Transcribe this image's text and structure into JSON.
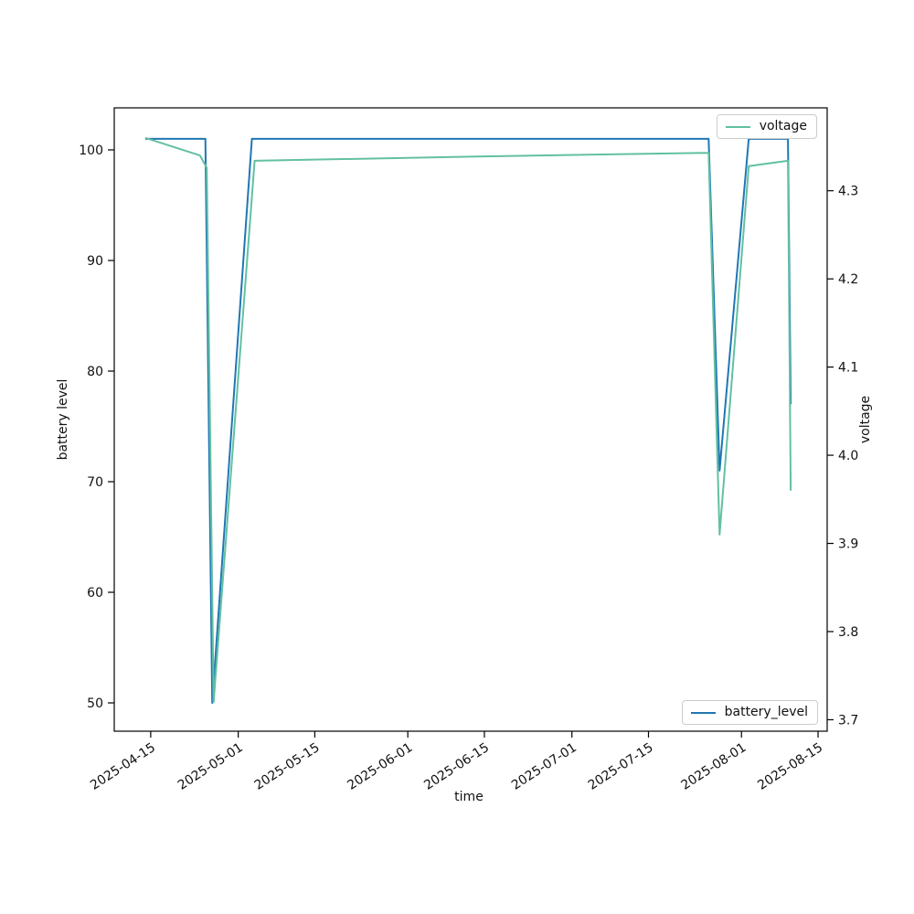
{
  "chart_data": {
    "type": "line",
    "title": "",
    "xlabel": "time",
    "grid": false,
    "x_range": [
      "2025-04-08T08:00",
      "2025-08-16T16:00"
    ],
    "x_ticks": [
      "2025-04-15",
      "2025-05-01",
      "2025-05-15",
      "2025-06-01",
      "2025-06-15",
      "2025-07-01",
      "2025-07-15",
      "2025-08-01",
      "2025-08-15"
    ],
    "x_tick_rotation_deg": 33,
    "left_axis": {
      "label": "battery level",
      "tick_labels": [
        "50",
        "60",
        "70",
        "80",
        "90",
        "100"
      ],
      "range": [
        47.44,
        103.8
      ]
    },
    "right_axis": {
      "label": "voltage",
      "tick_labels": [
        "3.7",
        "3.8",
        "3.9",
        "4.0",
        "4.1",
        "4.2",
        "4.3"
      ],
      "range": [
        3.687,
        4.394
      ]
    },
    "series": [
      {
        "name": "battery_level",
        "axis": "left",
        "color": "#1f77b4",
        "points": [
          [
            "2025-04-14",
            101
          ],
          [
            "2025-04-25",
            101
          ],
          [
            "2025-04-26T06:00",
            50
          ],
          [
            "2025-05-03T12:00",
            101
          ],
          [
            "2025-07-26",
            101
          ],
          [
            "2025-07-28",
            71
          ],
          [
            "2025-08-02T08:00",
            101
          ],
          [
            "2025-08-09T12:00",
            101
          ],
          [
            "2025-08-10",
            77
          ]
        ]
      },
      {
        "name": "voltage",
        "axis": "right",
        "color": "#62c0a2",
        "points": [
          [
            "2025-04-14",
            4.36
          ],
          [
            "2025-04-24",
            4.34
          ],
          [
            "2025-04-25T06:00",
            4.326
          ],
          [
            "2025-04-26T12:00",
            3.72
          ],
          [
            "2025-05-04",
            4.334
          ],
          [
            "2025-06-15",
            4.339
          ],
          [
            "2025-07-26",
            4.343
          ],
          [
            "2025-07-28",
            3.91
          ],
          [
            "2025-08-02T08:00",
            4.328
          ],
          [
            "2025-08-09T12:00",
            4.334
          ],
          [
            "2025-08-10",
            3.96
          ]
        ]
      }
    ],
    "legends": [
      {
        "label": "voltage",
        "color": "#62c0a2",
        "position": "upper right"
      },
      {
        "label": "battery_level",
        "color": "#1f77b4",
        "position": "lower right"
      }
    ]
  }
}
